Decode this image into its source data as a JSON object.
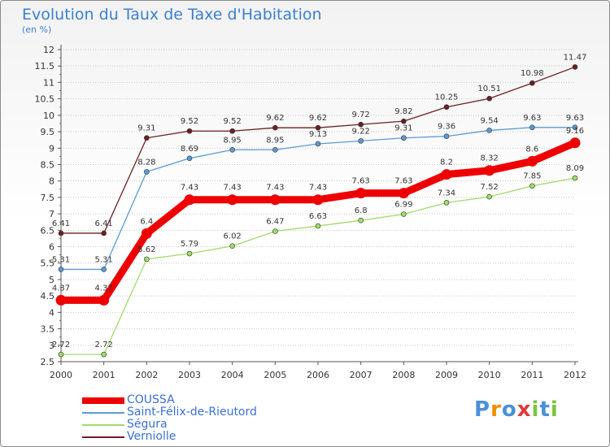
{
  "chart_data": {
    "type": "line",
    "title": "Evolution du Taux de Taxe d'Habitation",
    "subtitle": "(en %)",
    "x": [
      "2000",
      "2001",
      "2002",
      "2003",
      "2004",
      "2005",
      "2006",
      "2007",
      "2008",
      "2009",
      "2010",
      "2011",
      "2012"
    ],
    "ylim": [
      2.5,
      12
    ],
    "yticks": [
      "2.5",
      "3",
      "3.5",
      "4",
      "4.5",
      "5",
      "5.5",
      "6",
      "6.5",
      "7",
      "7.5",
      "8",
      "8.5",
      "9",
      "9.5",
      "10",
      "10.5",
      "11",
      "11.5",
      "12"
    ],
    "grid": "horizontal-dotted",
    "legend_position": "bottom-left",
    "series": [
      {
        "name": "Verniolle",
        "color": "#6b1f24",
        "values": [
          6.41,
          6.41,
          9.31,
          9.52,
          9.52,
          9.62,
          9.62,
          9.72,
          9.82,
          10.25,
          10.51,
          10.98,
          11.47
        ],
        "labels": [
          "6.41",
          "6.41",
          "9.31",
          "9.52",
          "9.52",
          "9.62",
          "9.62",
          "9.72",
          "9.82",
          "10.25",
          "10.51",
          "10.98",
          "11.47"
        ]
      },
      {
        "name": "Saint-Félix-de-Rieutord",
        "color": "#5b9bd5",
        "values": [
          5.31,
          5.31,
          8.28,
          8.69,
          8.95,
          8.95,
          9.13,
          9.22,
          9.31,
          9.36,
          9.54,
          9.63,
          9.63
        ],
        "labels": [
          "5.31",
          "5.31",
          "8.28",
          "8.69",
          "8.95",
          "8.95",
          "9.13",
          "9.22",
          "9.31",
          "9.36",
          "9.54",
          "9.63",
          "9.63"
        ]
      },
      {
        "name": "Ségura",
        "color": "#9fdc6a",
        "values": [
          2.72,
          2.72,
          5.62,
          5.79,
          6.02,
          6.47,
          6.63,
          6.8,
          6.99,
          7.34,
          7.52,
          7.85,
          8.09
        ],
        "labels": [
          "2.72",
          "2.72",
          "5.62",
          "5.79",
          "6.02",
          "6.47",
          "6.63",
          "6.8",
          "6.99",
          "7.34",
          "7.52",
          "7.85",
          "8.09"
        ]
      },
      {
        "name": "COUSSA",
        "color": "#ee0000",
        "values": [
          4.37,
          4.37,
          6.4,
          7.43,
          7.43,
          7.43,
          7.43,
          7.63,
          7.63,
          8.2,
          8.32,
          8.6,
          9.16
        ],
        "labels": [
          "4.37",
          "4.37",
          "6.4",
          "7.43",
          "7.43",
          "7.43",
          "7.43",
          "7.63",
          "7.63",
          "8.2",
          "8.32",
          "8.6",
          "9.16"
        ]
      }
    ]
  },
  "legend": {
    "items": [
      {
        "label": "COUSSA",
        "color": "#ee0000",
        "thick": true
      },
      {
        "label": "Saint-Félix-de-Rieutord",
        "color": "#5b9bd5",
        "thick": false
      },
      {
        "label": "Ségura",
        "color": "#9fdc6a",
        "thick": false
      },
      {
        "label": "Verniolle",
        "color": "#6b1f24",
        "thick": false
      }
    ]
  },
  "logo": {
    "text": "Proxiti",
    "letter_colors": [
      "#4a90d9",
      "#f08c00",
      "#4a90d9",
      "#e03a3a",
      "#7cc242",
      "#4a90d9",
      "#7cc242"
    ]
  }
}
